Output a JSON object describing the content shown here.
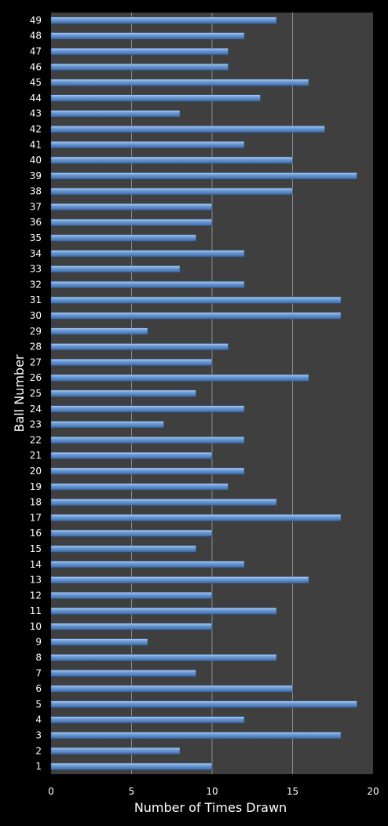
{
  "chart_data": {
    "type": "bar",
    "orientation": "horizontal",
    "xlabel": "Number of Times Drawn",
    "ylabel": "Ball Number",
    "xlim": [
      0,
      20
    ],
    "xticks": [
      0,
      5,
      10,
      15,
      20
    ],
    "grid": "vertical",
    "colors": {
      "background": "#000000",
      "plot_area": "#3f3f3f",
      "bar": "#4f81bd",
      "bar_highlight": "#a9c4ea",
      "gridline": "#8c8c8c"
    },
    "categories": [
      "1",
      "2",
      "3",
      "4",
      "5",
      "6",
      "7",
      "8",
      "9",
      "10",
      "11",
      "12",
      "13",
      "14",
      "15",
      "16",
      "17",
      "18",
      "19",
      "20",
      "21",
      "22",
      "23",
      "24",
      "25",
      "26",
      "27",
      "28",
      "29",
      "30",
      "31",
      "32",
      "33",
      "34",
      "35",
      "36",
      "37",
      "38",
      "39",
      "40",
      "41",
      "42",
      "43",
      "44",
      "45",
      "46",
      "47",
      "48",
      "49"
    ],
    "values": [
      10,
      8,
      18,
      12,
      19,
      15,
      9,
      14,
      6,
      10,
      14,
      10,
      16,
      12,
      9,
      10,
      18,
      14,
      11,
      12,
      10,
      12,
      7,
      12,
      9,
      16,
      10,
      11,
      6,
      18,
      18,
      12,
      8,
      12,
      9,
      10,
      10,
      15,
      19,
      15,
      12,
      17,
      8,
      13,
      16,
      11,
      11,
      12,
      14
    ]
  }
}
